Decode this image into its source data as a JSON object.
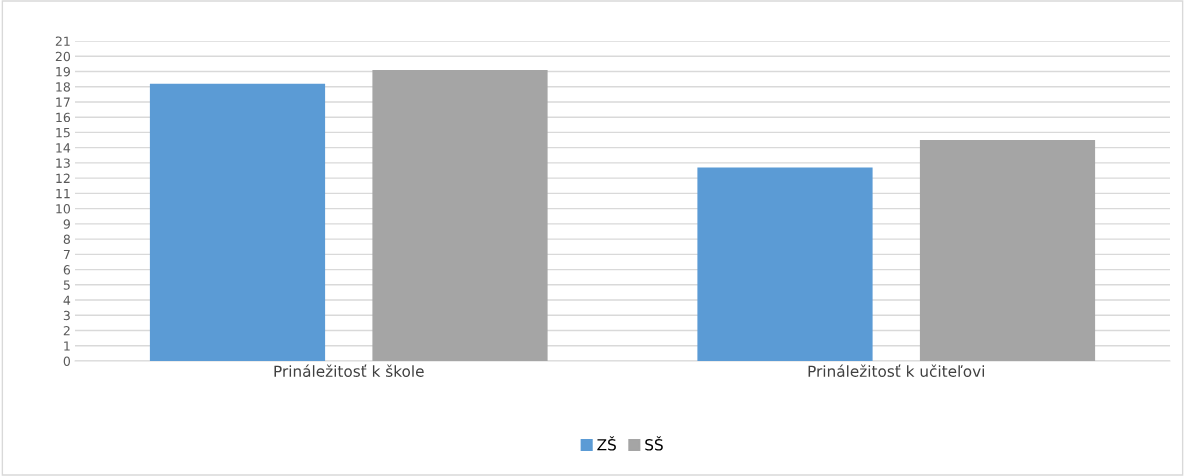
{
  "chart_data": {
    "type": "bar",
    "categories": [
      "Prináležitosť k škole",
      "Prináležitosť k učiteľovi"
    ],
    "series": [
      {
        "name": "ZŠ",
        "color": "#5b9bd5",
        "values": [
          18.2,
          12.7
        ]
      },
      {
        "name": "SŠ",
        "color": "#a5a5a5",
        "values": [
          19.1,
          14.5
        ]
      }
    ],
    "ylim": [
      0,
      21
    ],
    "yticks": [
      0,
      1,
      2,
      3,
      4,
      5,
      6,
      7,
      8,
      9,
      10,
      11,
      12,
      13,
      14,
      15,
      16,
      17,
      18,
      19,
      20,
      21
    ],
    "grid": "y",
    "legend": "bottom"
  }
}
